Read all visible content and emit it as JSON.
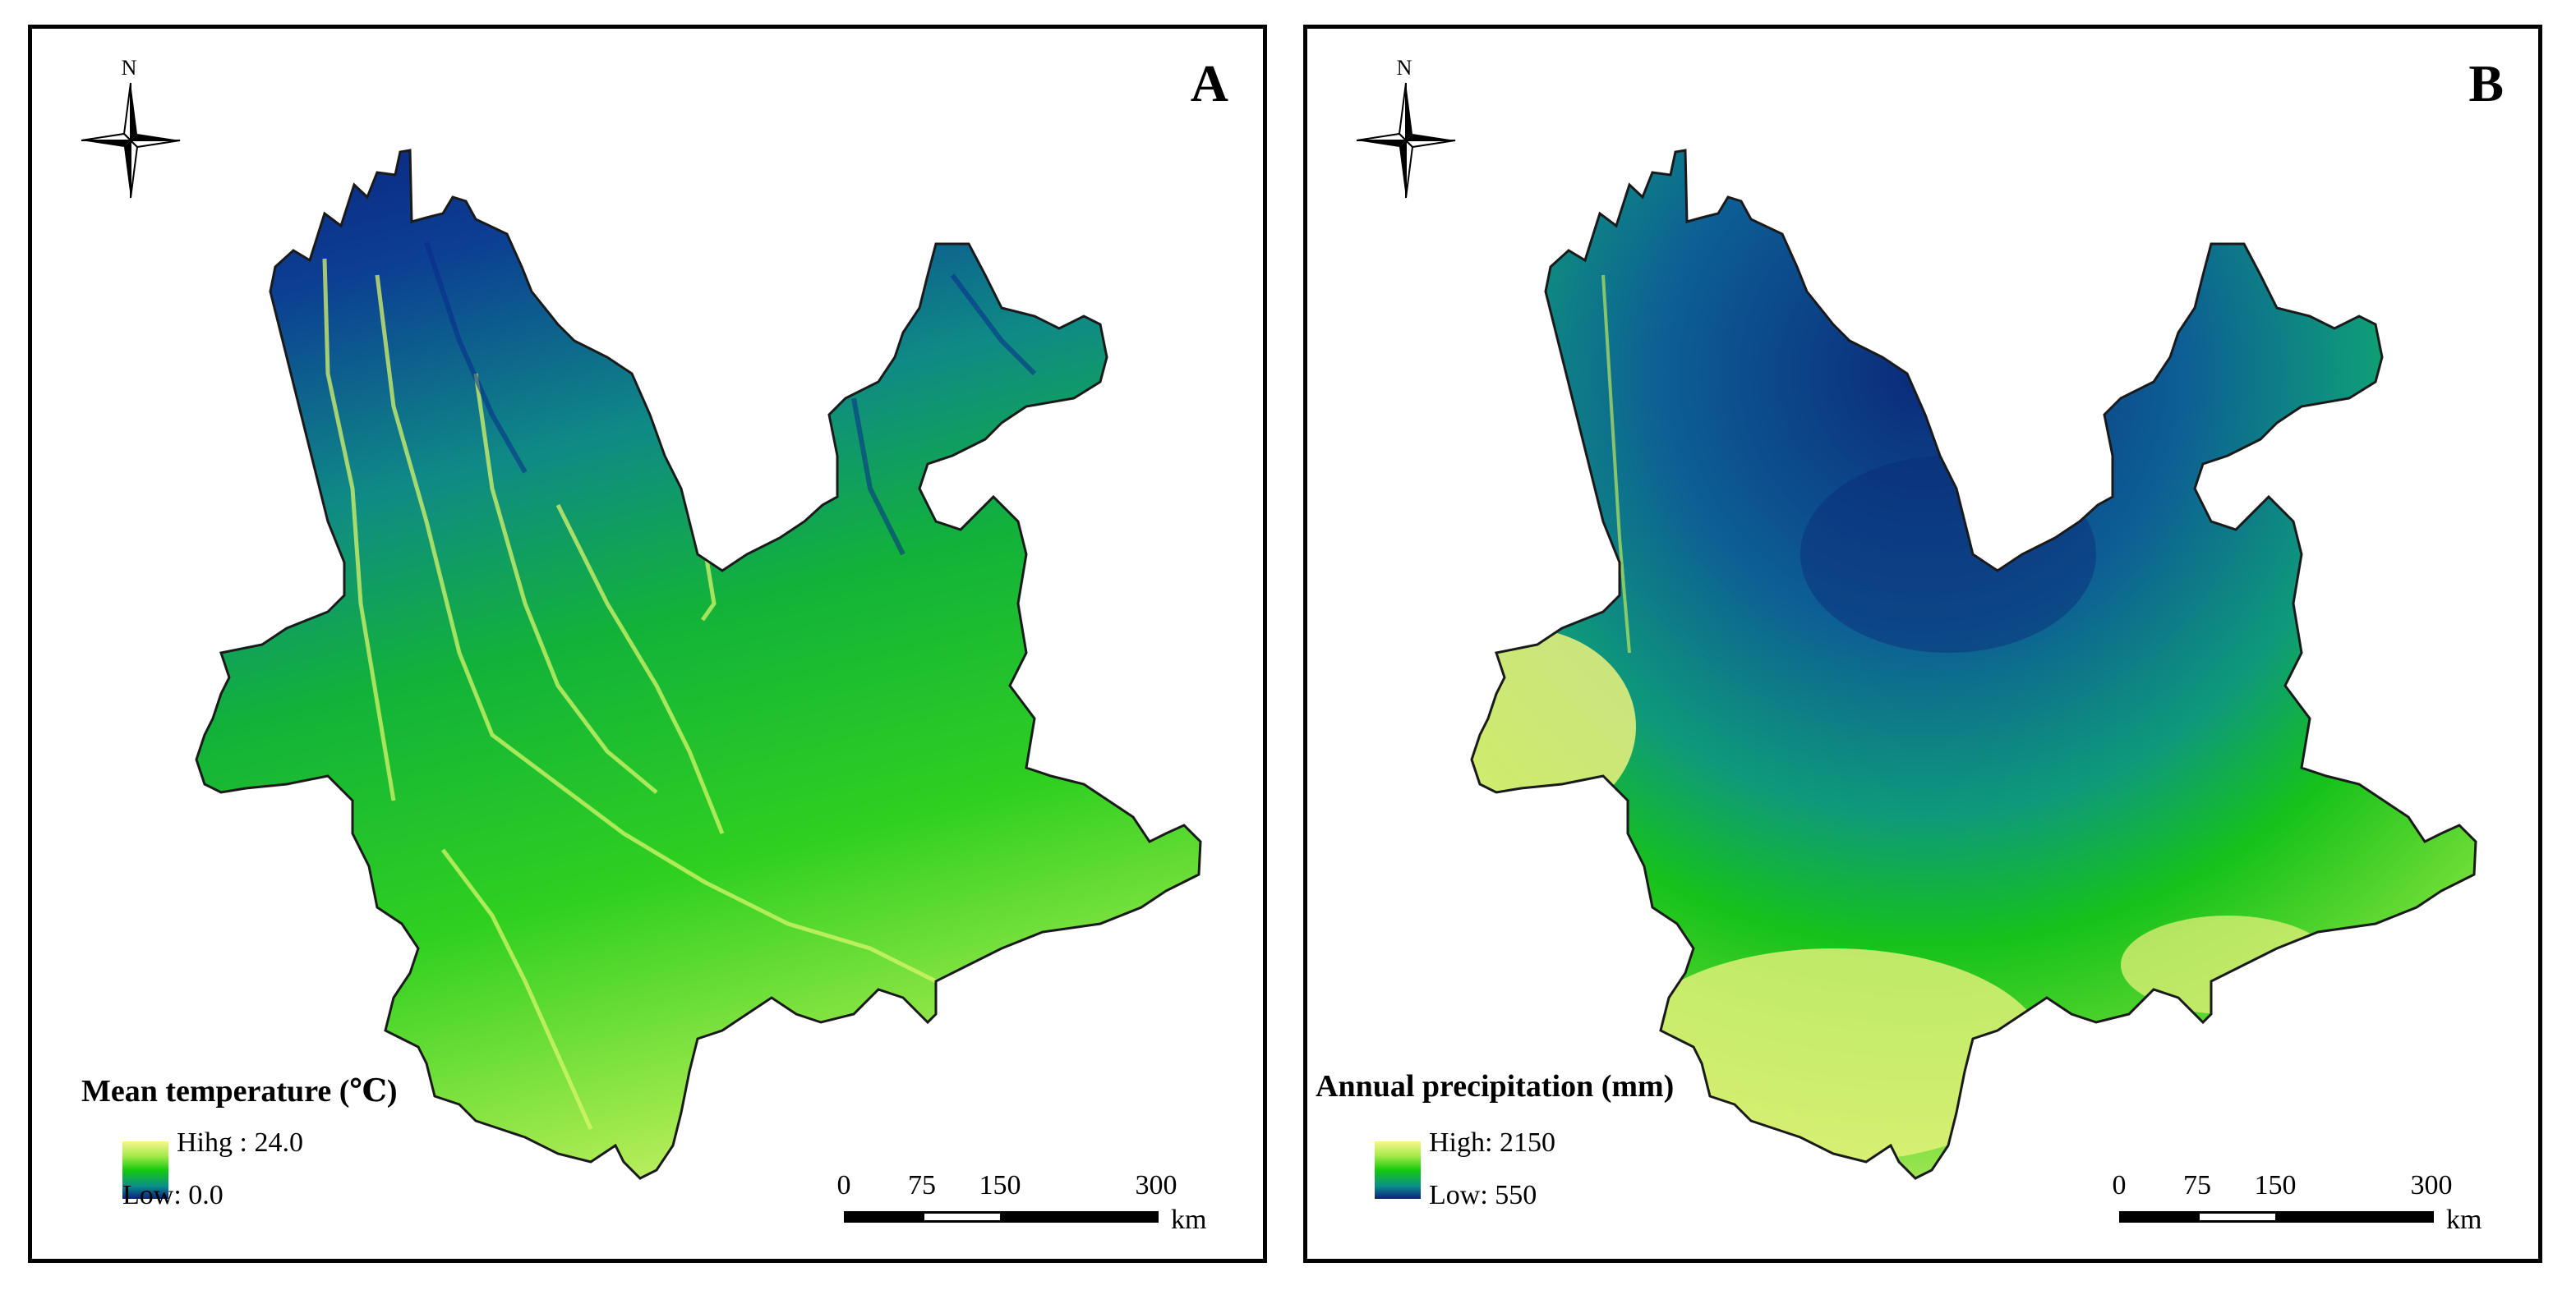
{
  "panels": [
    {
      "label": "A",
      "north_label": "N",
      "legend": {
        "title": "Mean temperature (℃)",
        "high": "Hihg : 24.0",
        "low": "Low: 0.0"
      },
      "scale": {
        "ticks": [
          "0",
          "75",
          "150",
          "300"
        ],
        "unit": "km"
      }
    },
    {
      "label": "B",
      "north_label": "N",
      "legend": {
        "title": "Annual precipitation (mm)",
        "high": "High: 2150",
        "low": "Low: 550"
      },
      "scale": {
        "ticks": [
          "0",
          "75",
          "150",
          "300"
        ],
        "unit": "km"
      }
    }
  ],
  "colors": {
    "low": "#0c1f7e",
    "mid_low": "#0a8f8b",
    "mid": "#16c90c",
    "mid_high": "#a7ea4a",
    "high": "#f6f78c",
    "outline": "#1a1a1a"
  }
}
